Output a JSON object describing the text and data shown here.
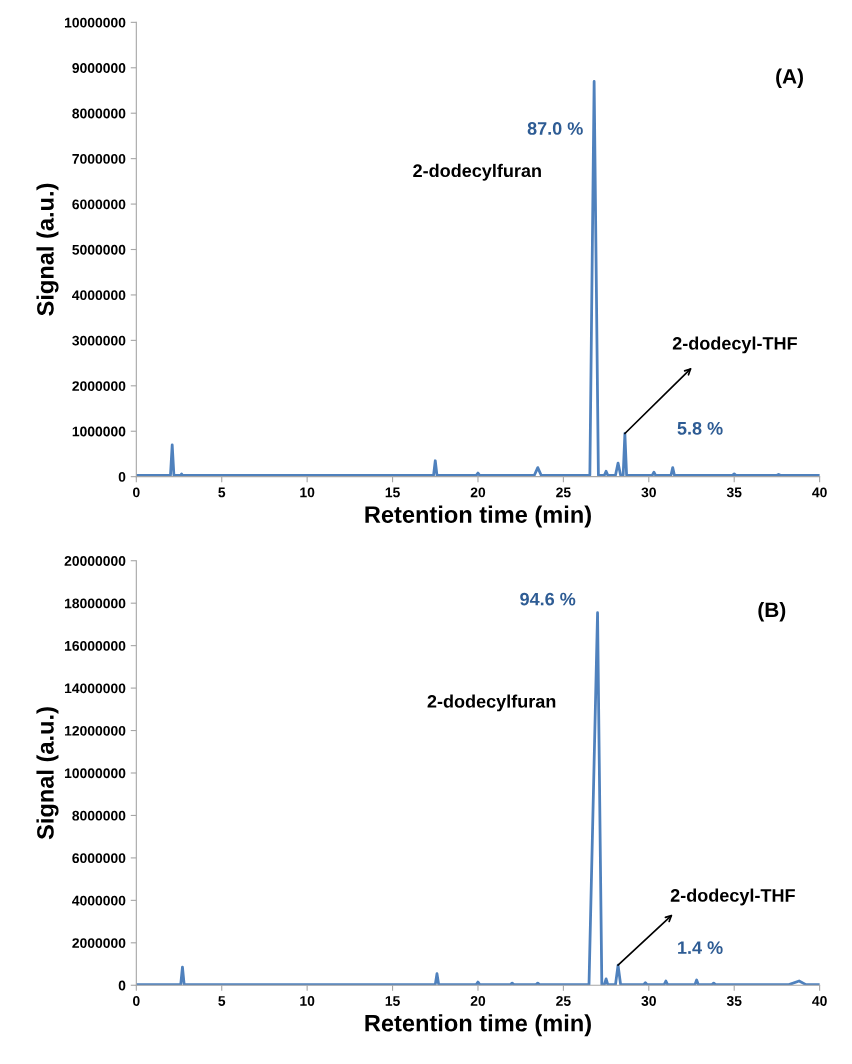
{
  "chart_data": [
    {
      "type": "line",
      "xlabel": "Retention time (min)",
      "ylabel": "Signal (a.u.)",
      "xlim": [
        0,
        40
      ],
      "xticks": [
        0,
        5,
        10,
        15,
        20,
        25,
        30,
        35,
        40
      ],
      "ylim": [
        0,
        10000000
      ],
      "yticks": [
        0,
        1000000,
        2000000,
        3000000,
        4000000,
        5000000,
        6000000,
        7000000,
        8000000,
        9000000,
        10000000
      ],
      "grid": false,
      "legend": false,
      "series": [
        {
          "color": "#4f81bd",
          "x": [
            0,
            2.0,
            2.1,
            2.2,
            2.6,
            2.65,
            2.7,
            17.4,
            17.5,
            17.6,
            19.9,
            20.0,
            20.1,
            23.3,
            23.5,
            23.7,
            26.55,
            26.8,
            27.05,
            27.4,
            27.5,
            27.6,
            28.05,
            28.2,
            28.35,
            28.5,
            28.6,
            28.7,
            30.2,
            30.3,
            30.4,
            31.3,
            31.4,
            31.5,
            34.9,
            35.0,
            35.1,
            37.5,
            37.6,
            37.7,
            40
          ],
          "values": [
            30000,
            30000,
            700000,
            30000,
            30000,
            60000,
            30000,
            30000,
            350000,
            30000,
            30000,
            80000,
            30000,
            30000,
            200000,
            30000,
            30000,
            8700000,
            30000,
            30000,
            120000,
            30000,
            30000,
            300000,
            30000,
            30000,
            950000,
            30000,
            30000,
            100000,
            30000,
            30000,
            200000,
            30000,
            30000,
            60000,
            30000,
            30000,
            50000,
            30000,
            30000
          ]
        }
      ],
      "annotations": [
        "(A)",
        "87.0 %",
        "2-dodecylfuran",
        {
          "text": "2-dodecyl-THF",
          "x": 28.6,
          "y": 950000
        },
        "5.8 %"
      ]
    },
    {
      "type": "line",
      "xlabel": "Retention time (min)",
      "ylabel": "Signal (a.u.)",
      "xlim": [
        0,
        40
      ],
      "xticks": [
        0,
        5,
        10,
        15,
        20,
        25,
        30,
        35,
        40
      ],
      "ylim": [
        0,
        20000000
      ],
      "yticks": [
        0,
        2000000,
        4000000,
        6000000,
        8000000,
        10000000,
        12000000,
        14000000,
        16000000,
        18000000,
        20000000
      ],
      "grid": false,
      "legend": false,
      "series": [
        {
          "color": "#4f81bd",
          "x": [
            0,
            2.6,
            2.7,
            2.8,
            17.5,
            17.6,
            17.7,
            19.9,
            20.0,
            20.1,
            21.9,
            22.0,
            22.1,
            23.4,
            23.5,
            23.6,
            26.5,
            27.0,
            27.25,
            27.4,
            27.5,
            27.6,
            28.05,
            28.2,
            28.35,
            29.7,
            29.8,
            29.9,
            30.9,
            31.0,
            31.1,
            32.7,
            32.8,
            32.9,
            33.7,
            33.8,
            33.9,
            38.2,
            38.8,
            39.2,
            40
          ],
          "values": [
            30000,
            30000,
            850000,
            30000,
            30000,
            550000,
            30000,
            30000,
            150000,
            30000,
            30000,
            100000,
            30000,
            30000,
            100000,
            30000,
            30000,
            17550000,
            30000,
            30000,
            300000,
            30000,
            30000,
            950000,
            30000,
            30000,
            120000,
            30000,
            30000,
            200000,
            30000,
            30000,
            250000,
            30000,
            30000,
            100000,
            30000,
            30000,
            200000,
            30000,
            30000
          ]
        }
      ],
      "annotations": [
        "(B)",
        "94.6 %",
        "2-dodecylfuran",
        {
          "text": "2-dodecyl-THF",
          "x": 28.2,
          "y": 950000
        },
        "1.4 %"
      ]
    }
  ]
}
